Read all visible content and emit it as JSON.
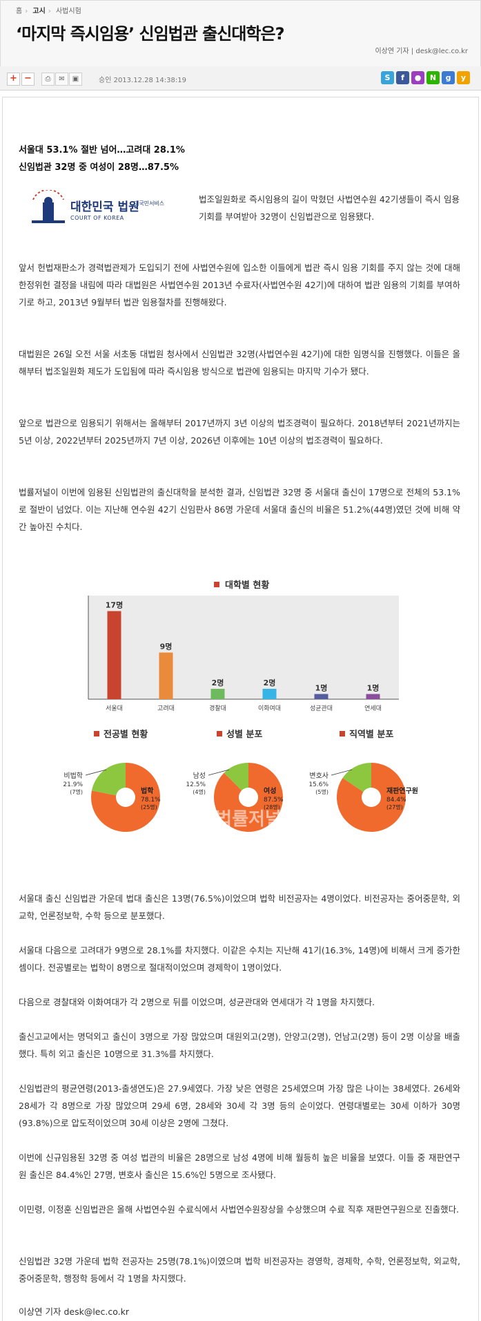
{
  "breadcrumb": [
    "홈",
    "고시",
    "사법시험"
  ],
  "headline": "‘마지막 즉시임용’ 신임법관 출신대학은?",
  "byline": "이상연 기자 | desk@lec.co.kr",
  "toolbar": {
    "zoom_in": "+",
    "zoom_out": "−",
    "approved_label": "승인 2013.12.28  14:38:19",
    "icons": [
      "print-icon",
      "email-icon",
      "scrap-icon",
      "tweet-icon"
    ]
  },
  "sns": [
    {
      "name": "skype",
      "glyph": "S",
      "color": "#3aa3d9"
    },
    {
      "name": "facebook",
      "glyph": "f",
      "color": "#3b5998"
    },
    {
      "name": "message",
      "glyph": "●",
      "color": "#9b3fbf"
    },
    {
      "name": "naver",
      "glyph": "N",
      "color": "#2db400"
    },
    {
      "name": "google",
      "glyph": "g",
      "color": "#3d7bd3"
    },
    {
      "name": "yozm",
      "glyph": "y",
      "color": "#f0a200"
    }
  ],
  "subheads": [
    "서울대 53.1% 절반 넘어…고려대 28.1%",
    "신임법관 32명 중 여성이 28명…87.5%"
  ],
  "logo": {
    "name": "대한민국 법원",
    "tag": "대국민서비스",
    "english": "COURT OF KOREA"
  },
  "intro": "법조일원화로 즉시임용의 길이 막혔던 사법연수원 42기생들이 즉시 임용 기회를 부여받아 32명이 신임법관으로 임용됐다.",
  "paragraphs_top": [
    "앞서 헌법재판소가 경력법관제가 도입되기 전에 사법연수원에 입소한 이들에게 법관 즉시 임용 기회를 주지 않는 것에 대해 한정위헌 결정을 내림에 따라 대법원은 사법연수원 2013년 수료자(사법연수원 42기)에 대하여 법관 임용의 기회를 부여하기로 하고, 2013년 9월부터 법관 임용절차를 진행해왔다.",
    "대법원은 26일 오전 서울 서초동 대법원 청사에서 신임법관 32명(사법연수원 42기)에 대한 임명식을 진행했다. 이들은 올해부터 법조일원화 제도가 도입됨에 따라 즉시임용 방식으로 법관에 임용되는 마지막 기수가 됐다.",
    "앞으로 법관으로 임용되기 위해서는 올해부터 2017년까지 3년 이상의 법조경력이 필요하다. 2018년부터 2021년까지는 5년 이상, 2022년부터 2025년까지 7년 이상, 2026년 이후에는 10년 이상의 법조경력이 필요하다.",
    "법률저널이 이번에 임용된 신임법관의 출신대학을 분석한 결과, 신임법관 32명 중 서울대 출신이 17명으로 전체의 53.1%로 절반이 넘었다. 이는 지난해 연수원 42기 신임판사 86명 가운데 서울대 출신의 비율은 51.2%(44명)였던 것에 비해 약간 높아진 수치다."
  ],
  "paragraphs_bottom": [
    "서울대 출신 신임법관 가운데 법대 출신은 13명(76.5%)이었으며 법학 비전공자는 4명이었다. 비전공자는 중어중문학, 외교학, 언론정보학, 수학 등으로 분포했다.",
    "서울대 다음으로 고려대가 9명으로 28.1%를 차지했다. 이같은 수치는 지난해 41기(16.3%, 14명)에 비해서 크게 증가한 셈이다. 전공별로는 법학이 8명으로 절대적이었으며 경제학이 1명이었다.",
    "다음으로 경찰대와 이화여대가 각 2명으로 뒤를 이었으며, 성균관대와 연세대가 각 1명을 차지했다.",
    "출신고교에서는 명덕외고 출신이 3명으로 가장 많았으며 대원외고(2명), 안양고(2명), 언남고(2명) 등이 2명 이상을 배출했다. 특히 외고 출신은 10명으로 31.3%를 차지했다.",
    "신임법관의 평균연령(2013-출생연도)은 27.9세였다. 가장 낮은 연령은 25세였으며 가장 많은 나이는 38세였다. 26세와 28세가 각 8명으로 가장 많았으며 29세 6명, 28세와 30세 각 3명 등의 순이었다. 연령대별로는 30세 이하가 30명(93.8%)으로 압도적이었으며 30세 이상은 2명에 그쳤다.",
    "이번에 신규임용된 32명 중 여성 법관의 비율은 28명으로 남성 4명에 비해 월등히 높은 비율을 보였다. 이들 중 재판연구원 출신은 84.4%인 27명, 변호사 출신은 15.6%인 5명으로 조사됐다.",
    "이민령, 이정훈 신임법관은 올해 사법연수원 수료식에서 사법연수원장상을 수상했으며 수료 직후 재판연구원으로 진출했다.",
    "신임법관 32명 가운데 법학 전공자는 25명(78.1%)이였으며 법학 비전공자는 경영학, 경제학, 수학, 언론정보학, 외교학, 중어중문학, 행정학 등에서 각 1명을 차지했다."
  ],
  "signature": "이상연 기자 desk@lec.co.kr",
  "chart_data": [
    {
      "type": "bar",
      "title": "대학별 현황",
      "categories": [
        "서울대",
        "고려대",
        "경찰대",
        "이화여대",
        "성균관대",
        "연세대"
      ],
      "values": [
        17,
        9,
        2,
        2,
        1,
        1
      ],
      "value_labels": [
        "17명",
        "9명",
        "2명",
        "2명",
        "1명",
        "1명"
      ],
      "colors": [
        "#c8442e",
        "#e98b3b",
        "#6dbb5e",
        "#36b4e6",
        "#555e9c",
        "#8a4f9c"
      ],
      "ylim": [
        0,
        20
      ]
    },
    {
      "type": "pie",
      "title": "전공별 현황",
      "slices": [
        {
          "label": "법학",
          "percent": "78.1%",
          "count": "(25명)",
          "value": 78.1,
          "color": "#f06a2e"
        },
        {
          "label": "비법학",
          "percent": "21.9%",
          "count": "(7명)",
          "value": 21.9,
          "color": "#8dc63f"
        }
      ]
    },
    {
      "type": "pie",
      "title": "성별 분포",
      "slices": [
        {
          "label": "여성",
          "percent": "87.5%",
          "count": "(28명)",
          "value": 87.5,
          "color": "#f06a2e"
        },
        {
          "label": "남성",
          "percent": "12.5%",
          "count": "(4명)",
          "value": 12.5,
          "color": "#8dc63f"
        }
      ]
    },
    {
      "type": "pie",
      "title": "직역별 분포",
      "slices": [
        {
          "label": "재판연구원",
          "percent": "84.4%",
          "count": "(27명)",
          "value": 84.4,
          "color": "#f06a2e"
        },
        {
          "label": "변호사",
          "percent": "15.6%",
          "count": "(5명)",
          "value": 15.6,
          "color": "#8dc63f"
        }
      ]
    }
  ],
  "watermark": "법률저널"
}
